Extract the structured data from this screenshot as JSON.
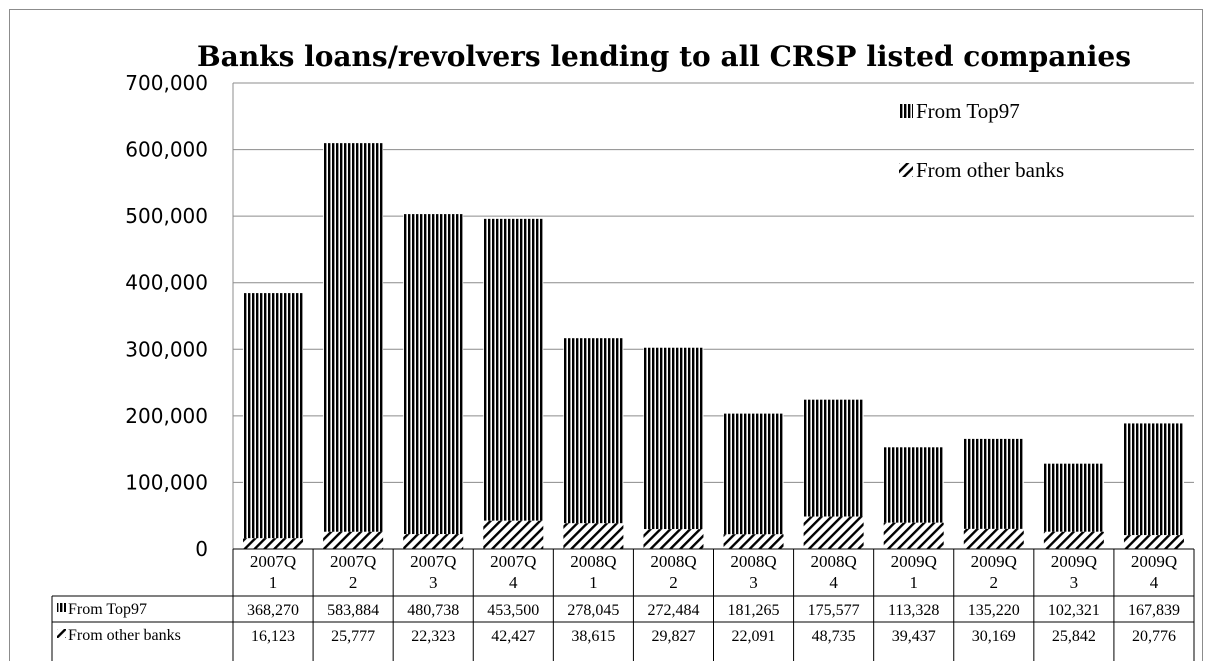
{
  "chart_data": {
    "type": "bar",
    "stacked": true,
    "title": "Banks loans/revolvers lending to all CRSP listed companies",
    "categories": [
      [
        "2007Q",
        "1"
      ],
      [
        "2007Q",
        "2"
      ],
      [
        "2007Q",
        "3"
      ],
      [
        "2007Q",
        "4"
      ],
      [
        "2008Q",
        "1"
      ],
      [
        "2008Q",
        "2"
      ],
      [
        "2008Q",
        "3"
      ],
      [
        "2008Q",
        "4"
      ],
      [
        "2009Q",
        "1"
      ],
      [
        "2009Q",
        "2"
      ],
      [
        "2009Q",
        "3"
      ],
      [
        "2009Q",
        "4"
      ]
    ],
    "series": [
      {
        "name": "From other banks",
        "pattern": "diagonal-hatch",
        "values": [
          16123,
          25777,
          22323,
          42427,
          38615,
          29827,
          22091,
          48735,
          39437,
          30169,
          25842,
          20776
        ],
        "labels": [
          "16,123",
          "25,777",
          "22,323",
          "42,427",
          "38,615",
          "29,827",
          "22,091",
          "48,735",
          "39,437",
          "30,169",
          "25,842",
          "20,776"
        ]
      },
      {
        "name": "From Top97",
        "pattern": "vertical-lines",
        "values": [
          368270,
          583884,
          480738,
          453500,
          278045,
          272484,
          181265,
          175577,
          113328,
          135220,
          102321,
          167839
        ],
        "labels": [
          "368,270",
          "583,884",
          "480,738",
          "453,500",
          "278,045",
          "272,484",
          "181,265",
          "175,577",
          "113,328",
          "135,220",
          "102,321",
          "167,839"
        ]
      }
    ],
    "yticks": [
      "0",
      "100,000",
      "200,000",
      "300,000",
      "400,000",
      "500,000",
      "600,000",
      "700,000"
    ],
    "ylim": [
      0,
      700000
    ],
    "grid": true,
    "legend_position": "top-right",
    "data_table": true
  }
}
